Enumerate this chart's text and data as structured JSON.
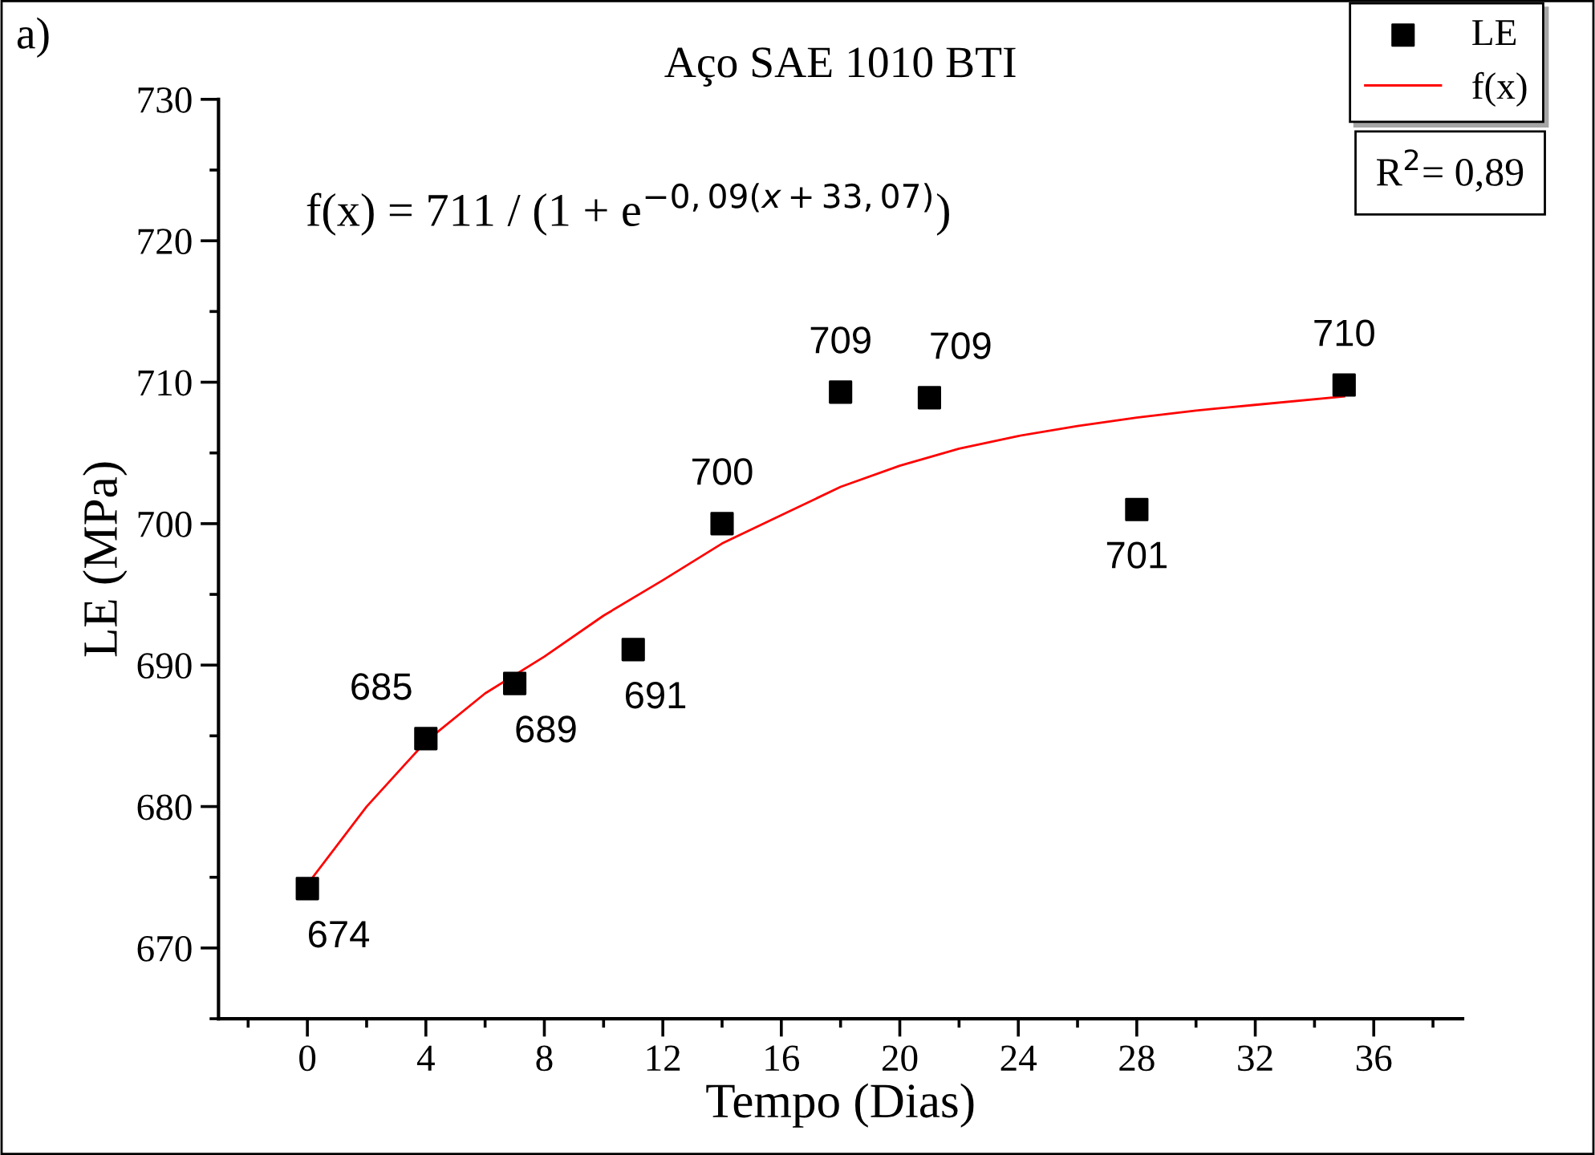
{
  "chart_data": {
    "type": "scatter",
    "title": "Aço SAE 1010 BTI",
    "xlabel": "Tempo (Dias)",
    "ylabel": "LE (MPa)",
    "xlim": [
      -3,
      39
    ],
    "xticks": [
      0,
      4,
      8,
      12,
      16,
      20,
      24,
      28,
      32,
      36
    ],
    "ylim": [
      665,
      730
    ],
    "yticks": [
      670,
      680,
      690,
      700,
      710,
      720,
      730
    ],
    "grid": false,
    "legend": "top right",
    "series": [
      {
        "name": "LE",
        "marker": "square",
        "color": "#000000",
        "x": [
          0,
          4,
          7,
          11,
          14,
          18,
          21,
          28,
          35
        ],
        "values": [
          674.2,
          684.8,
          688.7,
          691.1,
          700,
          709.3,
          708.9,
          701,
          709.8
        ],
        "value_labels": [
          "674",
          "685",
          "689",
          "691",
          "700",
          "709",
          "709",
          "701",
          "710"
        ]
      },
      {
        "name": "f(x)",
        "type": "line",
        "marker": "none",
        "color": "#ff0000",
        "x": [
          0,
          2,
          4,
          6,
          8,
          10,
          12,
          14,
          16,
          18,
          20,
          22,
          24,
          26,
          28,
          30,
          32,
          35
        ],
        "values": [
          674.5,
          680,
          684.6,
          688,
          690.6,
          693.5,
          696,
          698.6,
          700.6,
          702.6,
          704.1,
          705.3,
          706.2,
          706.9,
          707.5,
          708,
          708.4,
          709
        ]
      }
    ],
    "annotations": [
      "a)",
      "f(x) = 711 / (1 + e$^{−0,09(x+33,07)}$)",
      "R$^{2}$= 0,89"
    ]
  }
}
